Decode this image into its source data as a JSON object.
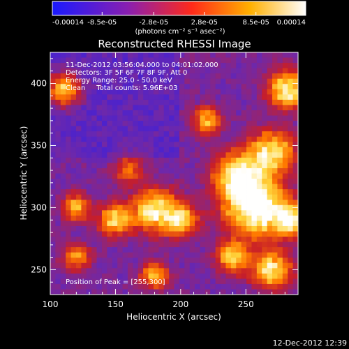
{
  "chart_data": {
    "type": "heatmap",
    "title": "Reconstructed RHESSI Image",
    "xlabel": "Heliocentric X (arcsec)",
    "ylabel": "Heliocentric Y (arcsec)",
    "xlim": [
      100,
      290
    ],
    "ylim": [
      230,
      425
    ],
    "x_ticks": [
      "100",
      "150",
      "200",
      "250"
    ],
    "x_tick_values": [
      100,
      150,
      200,
      250
    ],
    "y_ticks": [
      "250",
      "300",
      "350",
      "400"
    ],
    "y_tick_values": [
      250,
      300,
      350,
      400
    ],
    "colorbar": {
      "tick_labels": [
        "-0.00014",
        "-8.5e-05",
        "-2.8e-05",
        "2.8e-05",
        "8.5e-05",
        "0.00014"
      ],
      "tick_values": [
        -0.00014,
        -8.5e-05,
        -2.8e-05,
        2.8e-05,
        8.5e-05,
        0.00014
      ],
      "range": [
        -0.00014,
        0.00014
      ],
      "unit_label": "(photons cm⁻² s⁻¹ asec⁻²)",
      "colors": [
        "#1a1aff",
        "#8a1fb0",
        "#ff2a1a",
        "#ffb000",
        "#ffffff"
      ]
    },
    "annotations": [
      "11-Dec-2012 03:56:04.000 to 04:01:02.000",
      "Detectors: 3F 5F 6F 7F 8F 9F, Att 0",
      "Energy Range: 25.0 - 50.0 keV",
      "Clean     Total counts: 5.96E+03"
    ],
    "peak_label": "Position of Peak = [255,300]",
    "peak_position": [
      255,
      300
    ],
    "grid": false
  },
  "footer": {
    "timestamp": "12-Dec-2012 12:39"
  }
}
